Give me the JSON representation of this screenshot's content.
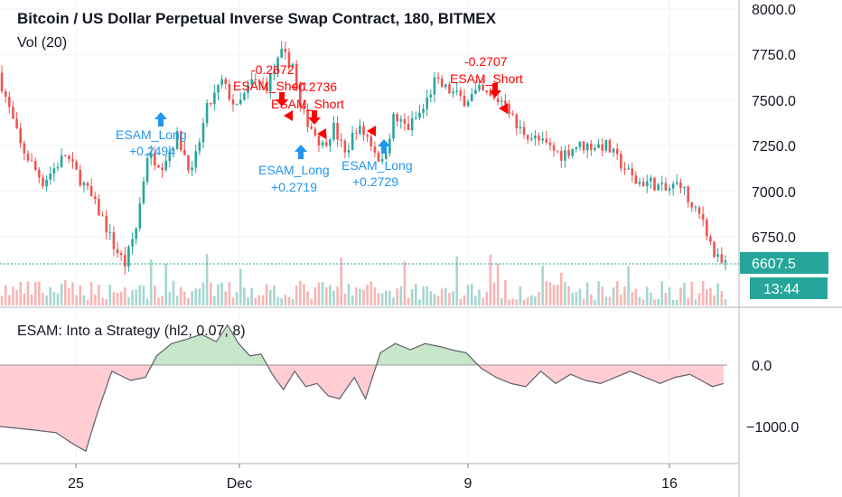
{
  "header": {
    "title": "Bitcoin / US Dollar Perpetual Inverse Swap Contract, 180, BITMEX",
    "volume_label": "Vol (20)"
  },
  "price_axis": {
    "ticks": [
      "8000.0",
      "7750.0",
      "7500.0",
      "7250.0",
      "7000.0",
      "6750.0"
    ],
    "current_price": "6607.5",
    "countdown": "13:44"
  },
  "indicator": {
    "label": "ESAM: Into a Strategy  (hl2, 0.07, 8)",
    "ticks": [
      "0.0",
      "−1000.0"
    ]
  },
  "time_axis": {
    "ticks": [
      "25",
      "Dec",
      "9",
      "16"
    ]
  },
  "signals": [
    {
      "label": "ESAM_Long",
      "value": "+0.2494",
      "type": "long"
    },
    {
      "label": "ESAM_Short",
      "value": "-0.2672",
      "type": "short"
    },
    {
      "label": "ESAM_Short",
      "value": "+0.2736",
      "type": "short"
    },
    {
      "label": "ESAM_Long",
      "value": "+0.2719",
      "type": "long"
    },
    {
      "label": "ESAM_Long",
      "value": "+0.2729",
      "type": "long"
    },
    {
      "label": "ESAM_Short",
      "value": "-0.2707",
      "type": "short"
    }
  ],
  "colors": {
    "up": "#26a69a",
    "down": "#ef5350",
    "long": "#2196f3",
    "short": "#ff0000",
    "osc_pos_fill": "#c8e6c9",
    "osc_neg_fill": "#ffcdd2"
  },
  "chart_data": [
    {
      "type": "candlestick",
      "title": "Bitcoin / US Dollar Perpetual Inverse Swap Contract, 180, BITMEX",
      "x_ticks": [
        "25",
        "Dec",
        "9",
        "16"
      ],
      "ylim": [
        6520,
        8050
      ],
      "y_ticks": [
        8000,
        7750,
        7500,
        7250,
        7000,
        6750
      ],
      "last_price": 6607.5,
      "price_path": [
        [
          0,
          7650
        ],
        [
          6,
          7250
        ],
        [
          12,
          7050
        ],
        [
          18,
          7200
        ],
        [
          24,
          7000
        ],
        [
          28,
          6850
        ],
        [
          31,
          6700
        ],
        [
          34,
          6600
        ],
        [
          37,
          6800
        ],
        [
          40,
          7200
        ],
        [
          44,
          7150
        ],
        [
          48,
          7300
        ],
        [
          52,
          7100
        ],
        [
          56,
          7450
        ],
        [
          60,
          7600
        ],
        [
          64,
          7450
        ],
        [
          68,
          7600
        ],
        [
          72,
          7580
        ],
        [
          76,
          7750
        ],
        [
          79,
          7700
        ],
        [
          81,
          7450
        ],
        [
          84,
          7350
        ],
        [
          87,
          7250
        ],
        [
          90,
          7350
        ],
        [
          93,
          7200
        ],
        [
          96,
          7350
        ],
        [
          99,
          7300
        ],
        [
          103,
          7150
        ],
        [
          106,
          7400
        ],
        [
          110,
          7350
        ],
        [
          114,
          7450
        ],
        [
          117,
          7600
        ],
        [
          121,
          7550
        ],
        [
          125,
          7500
        ],
        [
          129,
          7550
        ],
        [
          133,
          7500
        ],
        [
          136,
          7500
        ],
        [
          139,
          7350
        ],
        [
          143,
          7300
        ],
        [
          147,
          7250
        ],
        [
          151,
          7200
        ],
        [
          155,
          7250
        ],
        [
          159,
          7250
        ],
        [
          163,
          7250
        ],
        [
          167,
          7150
        ],
        [
          171,
          7050
        ],
        [
          175,
          7050
        ],
        [
          179,
          7000
        ],
        [
          183,
          7050
        ],
        [
          186,
          6900
        ],
        [
          189,
          6850
        ],
        [
          192,
          6650
        ],
        [
          194,
          6600
        ]
      ]
    },
    {
      "type": "area",
      "title": "ESAM: Into a Strategy  (hl2, 0.07, 8)",
      "y_ticks": [
        0,
        -1000
      ],
      "ylim": [
        -1450,
        800
      ],
      "points": [
        [
          0,
          -1000
        ],
        [
          8,
          -1050
        ],
        [
          15,
          -1100
        ],
        [
          20,
          -1300
        ],
        [
          23,
          -1400
        ],
        [
          26,
          -800
        ],
        [
          30,
          -100
        ],
        [
          35,
          -250
        ],
        [
          39,
          -200
        ],
        [
          42,
          150
        ],
        [
          46,
          350
        ],
        [
          50,
          420
        ],
        [
          54,
          500
        ],
        [
          58,
          380
        ],
        [
          61,
          650
        ],
        [
          64,
          350
        ],
        [
          67,
          150
        ],
        [
          70,
          180
        ],
        [
          73,
          -150
        ],
        [
          76,
          -400
        ],
        [
          79,
          -100
        ],
        [
          82,
          -350
        ],
        [
          85,
          -300
        ],
        [
          88,
          -500
        ],
        [
          91,
          -550
        ],
        [
          95,
          -200
        ],
        [
          98,
          -550
        ],
        [
          102,
          200
        ],
        [
          106,
          350
        ],
        [
          110,
          250
        ],
        [
          114,
          350
        ],
        [
          118,
          300
        ],
        [
          121,
          250
        ],
        [
          125,
          200
        ],
        [
          129,
          -50
        ],
        [
          133,
          -200
        ],
        [
          137,
          -300
        ],
        [
          141,
          -350
        ],
        [
          145,
          -100
        ],
        [
          149,
          -300
        ],
        [
          153,
          -150
        ],
        [
          157,
          -250
        ],
        [
          161,
          -300
        ],
        [
          165,
          -200
        ],
        [
          169,
          -100
        ],
        [
          173,
          -200
        ],
        [
          177,
          -300
        ],
        [
          181,
          -200
        ],
        [
          185,
          -150
        ],
        [
          188,
          -250
        ],
        [
          191,
          -350
        ],
        [
          194,
          -300
        ]
      ]
    }
  ]
}
